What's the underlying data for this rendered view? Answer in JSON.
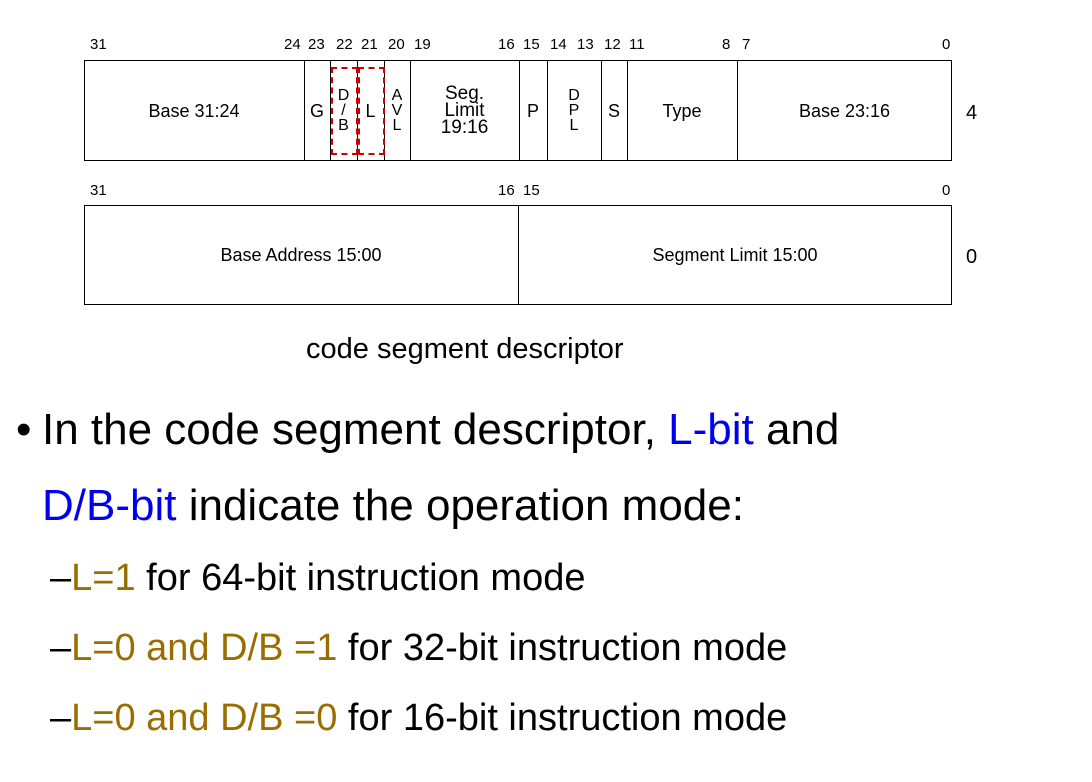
{
  "row_top": {
    "bit_labels": [
      "31",
      "24",
      "23",
      "22",
      "21",
      "20",
      "19",
      "16",
      "15",
      "14",
      "13",
      "12",
      "11",
      "8",
      "7",
      "0"
    ],
    "fields": {
      "base_hi": "Base 31:24",
      "g": "G",
      "db": [
        "D",
        "/",
        "B"
      ],
      "l": "L",
      "avl": [
        "A",
        "V",
        "L"
      ],
      "seg_limit": [
        "Seg.",
        "Limit",
        "19:16"
      ],
      "p": "P",
      "dpl": [
        "D",
        "P",
        "L"
      ],
      "s": "S",
      "type": "Type",
      "base_mid": "Base 23:16"
    },
    "offset": "4"
  },
  "row_bottom": {
    "bit_labels": [
      "31",
      "16",
      "15",
      "0"
    ],
    "fields": {
      "base_addr": "Base Address 15:00",
      "seg_limit": "Segment Limit 15:00"
    },
    "offset": "0"
  },
  "caption": "code segment descriptor",
  "bullet": {
    "marker": "•",
    "pre": "In the code segment descriptor, ",
    "lbit": "L-bit",
    "and": " and",
    "dbbit": "D/B-bit",
    "rest": " indicate the operation mode:"
  },
  "subitems": [
    {
      "dash": "–",
      "cond": "L=1",
      "text": " for 64-bit instruction mode"
    },
    {
      "dash": "–",
      "cond": "L=0 and D/B =1",
      "text": " for 32-bit instruction mode"
    },
    {
      "dash": "–",
      "cond": "L=0 and D/B =0",
      "text": " for 16-bit instruction mode"
    }
  ],
  "colors": {
    "highlight_blue": "#0000ee",
    "condition_gold": "#9a6d00",
    "dashed_box": "#cc0000"
  }
}
